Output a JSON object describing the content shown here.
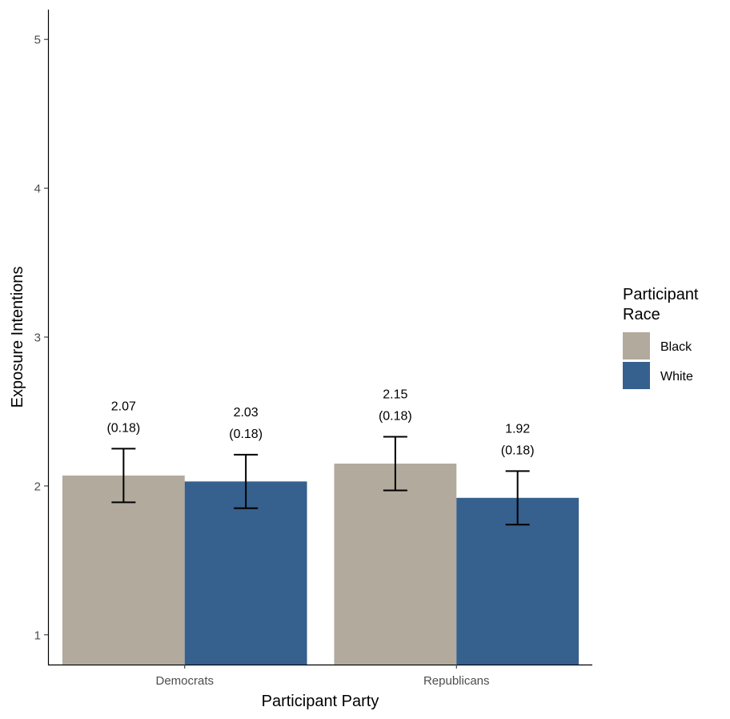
{
  "chart_data": {
    "type": "bar",
    "xlabel": "Participant Party",
    "ylabel": "Exposure Intentions",
    "categories": [
      "Democrats",
      "Republicans"
    ],
    "ylim": [
      0.8,
      5.2
    ],
    "yticks": [
      1,
      2,
      3,
      4,
      5
    ],
    "grid": false,
    "legend": {
      "title_lines": [
        "Participant",
        "Race"
      ],
      "placement": "right"
    },
    "series": [
      {
        "name": "Black",
        "color": "#b1aa9d",
        "values": [
          2.07,
          2.15
        ],
        "se": [
          0.18,
          0.18
        ],
        "value_labels": [
          "2.07",
          "2.15"
        ],
        "se_labels": [
          "(0.18)",
          "(0.18)"
        ]
      },
      {
        "name": "White",
        "color": "#36608d",
        "values": [
          2.03,
          1.92
        ],
        "se": [
          0.18,
          0.18
        ],
        "value_labels": [
          "2.03",
          "1.92"
        ],
        "se_labels": [
          "(0.18)",
          "(0.18)"
        ]
      }
    ]
  }
}
